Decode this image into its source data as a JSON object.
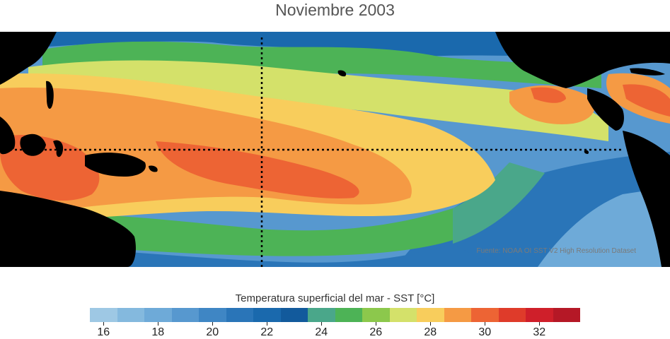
{
  "title": "Noviembre 2003",
  "source_note": "Fuente: NOAA OI SST V2 High Resolution Dataset",
  "colorbar": {
    "title": "Temperatura superficial del mar - SST  [°C]",
    "min": 15.5,
    "max": 33.5,
    "colors": [
      "#9ec8e4",
      "#84b9de",
      "#6eaad8",
      "#5798cf",
      "#3f86c4",
      "#2a75b8",
      "#1a69ad",
      "#125a9c",
      "#4aa78a",
      "#4db356",
      "#8cc84c",
      "#d4e16a",
      "#f8cd5c",
      "#f59a44",
      "#ed6434",
      "#df3b2a",
      "#cf1f2a",
      "#b51826"
    ],
    "ticks": [
      16,
      18,
      20,
      22,
      24,
      26,
      28,
      30,
      32
    ]
  },
  "map_colors": {
    "land": "#000000",
    "cold": "#3f86c4",
    "cool": "#6eaad8",
    "deep": "#1a69ad",
    "teal": "#4aa78a",
    "green": "#4db356",
    "lgreen": "#8cc84c",
    "yellow": "#d4e16a",
    "lorange": "#f8cd5c",
    "orange": "#f59a44",
    "red": "#ed6434",
    "dred": "#df3b2a"
  }
}
